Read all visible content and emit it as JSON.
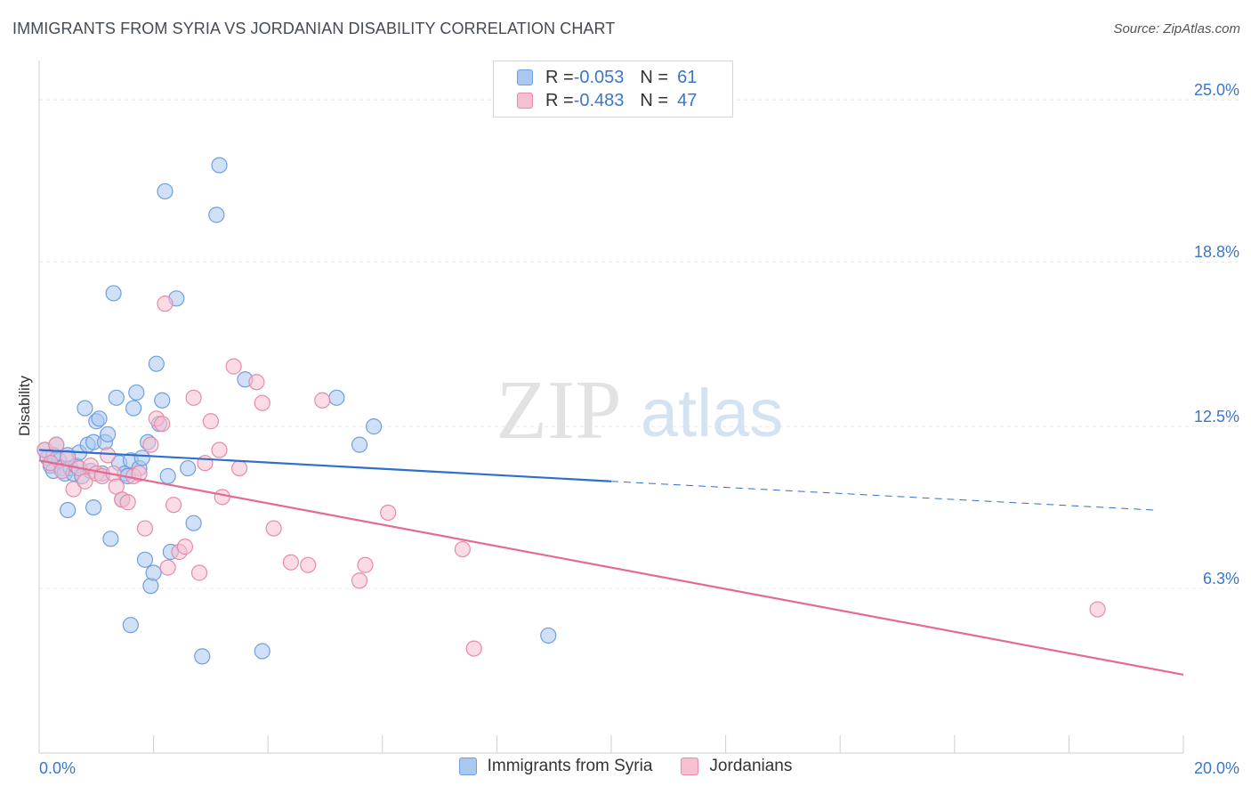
{
  "title": "IMMIGRANTS FROM SYRIA VS JORDANIAN DISABILITY CORRELATION CHART",
  "source": "Source: ZipAtlas.com",
  "watermark": {
    "zip": "ZIP",
    "atlas": "atlas"
  },
  "legend": {
    "rows": [
      {
        "r_label": "R = ",
        "r_value": "-0.053",
        "n_label": "N = ",
        "n_value": "61",
        "color": "#a9c8f0",
        "border": "#6f9fe0"
      },
      {
        "r_label": "R = ",
        "r_value": "-0.483",
        "n_label": "N = ",
        "n_value": "47",
        "color": "#f7bfd0",
        "border": "#e88aa8"
      }
    ]
  },
  "bottom_legend": [
    {
      "label": "Immigrants from Syria",
      "color": "#a9c8f0",
      "border": "#6f9fe0"
    },
    {
      "label": "Jordanians",
      "color": "#f7bfd0",
      "border": "#e88aa8"
    }
  ],
  "chart_data": {
    "type": "scatter",
    "title": "IMMIGRANTS FROM SYRIA VS JORDANIAN DISABILITY CORRELATION CHART",
    "xlabel": "",
    "ylabel": "Disability",
    "xlim": [
      0,
      20
    ],
    "ylim": [
      0,
      26.2
    ],
    "x_tick_labels": {
      "left": "0.0%",
      "right": "20.0%"
    },
    "y_ticks": [
      {
        "value": 6.3,
        "label": "6.3%"
      },
      {
        "value": 12.5,
        "label": "12.5%"
      },
      {
        "value": 18.8,
        "label": "18.8%"
      },
      {
        "value": 25.0,
        "label": "25.0%"
      }
    ],
    "grid": true,
    "series": [
      {
        "name": "Immigrants from Syria",
        "color": "#6f9fe0",
        "fill": "#a9c8f0",
        "line_color": "#2f6fcc",
        "trend": {
          "x0": 0,
          "y0": 11.6,
          "x1": 10,
          "y1": 10.4,
          "dashed_to_x": 19.5,
          "dashed_to_y": 9.3
        },
        "points": [
          [
            0.1,
            11.6
          ],
          [
            0.15,
            11.3
          ],
          [
            0.2,
            11.0
          ],
          [
            0.25,
            10.8
          ],
          [
            0.3,
            11.8
          ],
          [
            0.35,
            11.2
          ],
          [
            0.4,
            10.9
          ],
          [
            0.45,
            10.7
          ],
          [
            0.5,
            11.4
          ],
          [
            0.55,
            10.9
          ],
          [
            0.6,
            10.7
          ],
          [
            0.65,
            11.0
          ],
          [
            0.7,
            11.5
          ],
          [
            0.75,
            10.6
          ],
          [
            0.8,
            13.2
          ],
          [
            0.85,
            11.8
          ],
          [
            0.9,
            10.8
          ],
          [
            0.95,
            11.9
          ],
          [
            1.0,
            12.7
          ],
          [
            1.05,
            12.8
          ],
          [
            1.1,
            10.7
          ],
          [
            1.15,
            11.9
          ],
          [
            1.2,
            12.2
          ],
          [
            1.25,
            8.2
          ],
          [
            1.3,
            17.6
          ],
          [
            1.35,
            13.6
          ],
          [
            1.4,
            11.1
          ],
          [
            1.45,
            9.7
          ],
          [
            1.5,
            10.7
          ],
          [
            1.55,
            10.6
          ],
          [
            1.6,
            11.2
          ],
          [
            1.65,
            13.2
          ],
          [
            1.7,
            13.8
          ],
          [
            1.75,
            10.9
          ],
          [
            1.8,
            11.3
          ],
          [
            1.85,
            7.4
          ],
          [
            1.9,
            11.9
          ],
          [
            1.95,
            6.4
          ],
          [
            2.0,
            6.9
          ],
          [
            2.05,
            14.9
          ],
          [
            2.1,
            12.6
          ],
          [
            2.15,
            13.5
          ],
          [
            2.2,
            21.5
          ],
          [
            2.25,
            10.6
          ],
          [
            2.3,
            7.7
          ],
          [
            2.4,
            17.4
          ],
          [
            2.6,
            10.9
          ],
          [
            2.7,
            8.8
          ],
          [
            2.85,
            3.7
          ],
          [
            3.1,
            20.6
          ],
          [
            3.15,
            22.5
          ],
          [
            3.6,
            14.3
          ],
          [
            3.9,
            3.9
          ],
          [
            5.2,
            13.6
          ],
          [
            5.6,
            11.8
          ],
          [
            5.85,
            12.5
          ],
          [
            0.5,
            9.3
          ],
          [
            0.95,
            9.4
          ],
          [
            1.6,
            4.9
          ],
          [
            8.9,
            4.5
          ],
          [
            0.25,
            11.4
          ]
        ]
      },
      {
        "name": "Jordanians",
        "color": "#e88aa8",
        "fill": "#f7bfd0",
        "line_color": "#e36b93",
        "trend": {
          "x0": 0,
          "y0": 11.2,
          "x1": 20,
          "y1": 3.0
        },
        "points": [
          [
            0.1,
            11.6
          ],
          [
            0.2,
            11.1
          ],
          [
            0.3,
            11.8
          ],
          [
            0.4,
            10.8
          ],
          [
            0.5,
            11.3
          ],
          [
            0.6,
            10.1
          ],
          [
            0.7,
            10.9
          ],
          [
            0.8,
            10.4
          ],
          [
            0.9,
            11.0
          ],
          [
            1.0,
            10.7
          ],
          [
            1.1,
            10.6
          ],
          [
            1.2,
            11.4
          ],
          [
            1.3,
            10.7
          ],
          [
            1.35,
            10.2
          ],
          [
            1.45,
            9.7
          ],
          [
            1.55,
            9.6
          ],
          [
            1.65,
            10.6
          ],
          [
            1.75,
            10.7
          ],
          [
            1.85,
            8.6
          ],
          [
            1.95,
            11.8
          ],
          [
            2.05,
            12.8
          ],
          [
            2.15,
            12.6
          ],
          [
            2.25,
            7.1
          ],
          [
            2.35,
            9.5
          ],
          [
            2.2,
            17.2
          ],
          [
            2.45,
            7.7
          ],
          [
            2.55,
            7.9
          ],
          [
            2.7,
            13.6
          ],
          [
            2.8,
            6.9
          ],
          [
            2.9,
            11.1
          ],
          [
            3.0,
            12.7
          ],
          [
            3.15,
            11.6
          ],
          [
            3.2,
            9.8
          ],
          [
            3.4,
            14.8
          ],
          [
            3.5,
            10.9
          ],
          [
            3.8,
            14.2
          ],
          [
            3.9,
            13.4
          ],
          [
            4.1,
            8.6
          ],
          [
            4.4,
            7.3
          ],
          [
            4.7,
            7.2
          ],
          [
            4.95,
            13.5
          ],
          [
            5.6,
            6.6
          ],
          [
            5.7,
            7.2
          ],
          [
            6.1,
            9.2
          ],
          [
            7.4,
            7.8
          ],
          [
            7.6,
            4.0
          ],
          [
            18.5,
            5.5
          ]
        ]
      }
    ]
  }
}
